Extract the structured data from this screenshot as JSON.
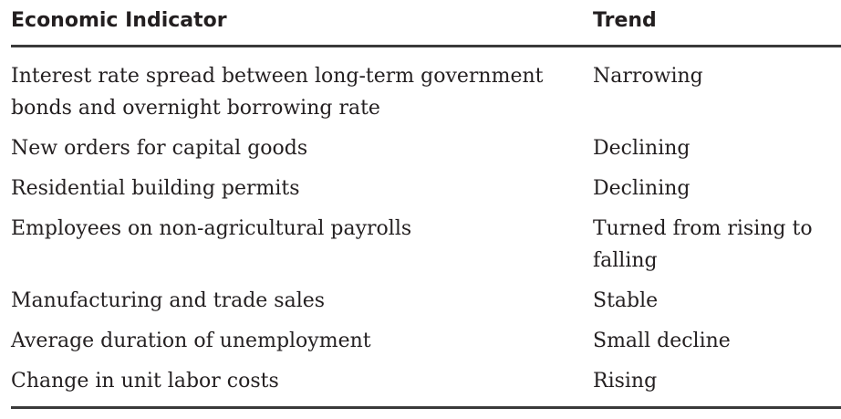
{
  "table": {
    "headers": [
      "Economic Indicator",
      "Trend"
    ],
    "rows": [
      [
        "Interest rate spread between long-term government bonds and overnight borrowing rate",
        "Narrowing"
      ],
      [
        "New orders for capital goods",
        "Declining"
      ],
      [
        "Residential building permits",
        "Declining"
      ],
      [
        "Employees on non-agricultural payrolls",
        "Turned from rising to falling"
      ],
      [
        "Manufacturing and trade sales",
        "Stable"
      ],
      [
        "Average duration of unemployment",
        "Small decline"
      ],
      [
        "Change in unit labor costs",
        "Rising"
      ]
    ]
  }
}
